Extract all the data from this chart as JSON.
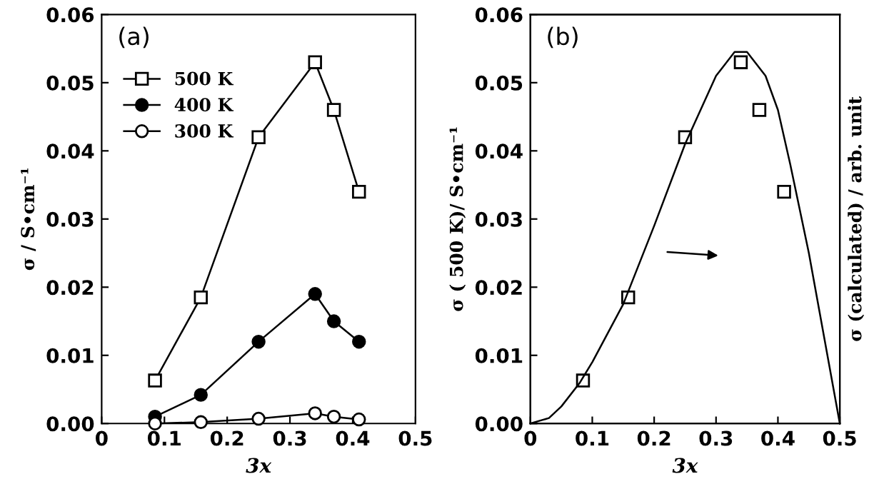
{
  "chart_data": [
    {
      "type": "line",
      "xlabel": "3x",
      "ylabel": "σ / S•cm⁻¹",
      "xlim": [
        0,
        0.5
      ],
      "ylim": [
        0,
        0.06
      ],
      "xticks": [
        0,
        0.1,
        0.2,
        0.3,
        0.4,
        0.5
      ],
      "yticks": [
        {
          "value": 0,
          "label": "0.00"
        },
        0.01,
        0.02,
        0.03,
        0.04,
        0.05,
        0.06
      ],
      "grid": false,
      "legend": "top left",
      "line_style": "solid",
      "annotations": [
        "(a)"
      ],
      "series": [
        {
          "name": "500 K",
          "color": "#ffffff",
          "marker": "square",
          "x": [
            0.085,
            0.158,
            0.25,
            0.34,
            0.37,
            0.41
          ],
          "values": [
            0.0063,
            0.0185,
            0.042,
            0.053,
            0.046,
            0.034
          ]
        },
        {
          "name": "400 K",
          "color": "#000000",
          "marker": "circle",
          "x": [
            0.085,
            0.158,
            0.25,
            0.34,
            0.37,
            0.41
          ],
          "values": [
            0.001,
            0.0042,
            0.012,
            0.019,
            0.015,
            0.012
          ]
        },
        {
          "name": "300 K",
          "color": "#ffffff",
          "marker": "circle",
          "x": [
            0.085,
            0.158,
            0.25,
            0.34,
            0.37,
            0.41
          ],
          "values": [
            0.0,
            0.0002,
            0.0007,
            0.0015,
            0.001,
            0.0006
          ]
        }
      ]
    },
    {
      "type": "scatter",
      "xlabel": "3x",
      "ylabel": "σ ( 500 K)/ S•cm⁻¹",
      "y2label": "σ (calculated) / arb. unit",
      "xlim": [
        0,
        0.5
      ],
      "ylim": [
        0,
        0.06
      ],
      "xticks": [
        0,
        0.1,
        0.2,
        0.3,
        0.4,
        0.5
      ],
      "yticks": [
        {
          "value": 0,
          "label": "0.00"
        },
        0.01,
        0.02,
        0.03,
        0.04,
        0.05,
        0.06
      ],
      "grid": false,
      "legend": false,
      "annotations": [
        "(b)"
      ],
      "series": [
        {
          "color": "#ffffff",
          "marker": "square",
          "x": [
            0.085,
            0.158,
            0.25,
            0.34,
            0.37,
            0.41
          ],
          "values": [
            0.0063,
            0.0185,
            0.042,
            0.053,
            0.046,
            0.034
          ]
        },
        {
          "type": "line",
          "color": "#000000",
          "marker": "none",
          "x": [
            0,
            0.03,
            0.05,
            0.08,
            0.1,
            0.15,
            0.2,
            0.25,
            0.3,
            0.33,
            0.35,
            0.38,
            0.4,
            0.42,
            0.45,
            0.47,
            0.49,
            0.5
          ],
          "values": [
            0,
            0.0008,
            0.0025,
            0.006,
            0.009,
            0.0175,
            0.029,
            0.041,
            0.051,
            0.0545,
            0.0545,
            0.051,
            0.046,
            0.038,
            0.025,
            0.015,
            0.005,
            0.0
          ]
        }
      ]
    }
  ]
}
